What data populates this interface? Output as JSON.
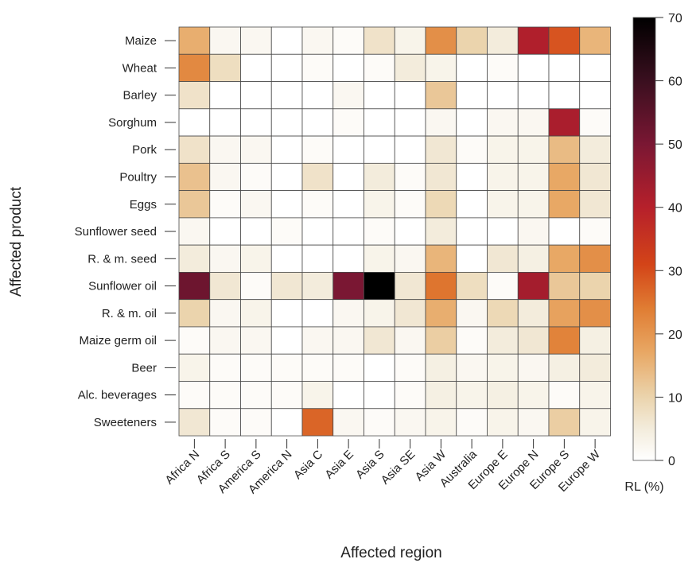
{
  "chart_data": {
    "type": "heatmap",
    "xlabel": "Affected region",
    "ylabel": "Affected product",
    "x_categories": [
      "Africa N",
      "Africa S",
      "America S",
      "America N",
      "Asia C",
      "Asia E",
      "Asia S",
      "Asia SE",
      "Asia W",
      "Australia",
      "Europe E",
      "Europe N",
      "Europe S",
      "Europe W"
    ],
    "y_categories": [
      "Maize",
      "Wheat",
      "Barley",
      "Sorghum",
      "Pork",
      "Poultry",
      "Eggs",
      "Sunflower seed",
      "R. & m. seed",
      "Sunflower oil",
      "R. & m. oil",
      "Maize germ oil",
      "Beer",
      "Alc. beverages",
      "Sweeteners"
    ],
    "values": [
      [
        16,
        2,
        2,
        0,
        2,
        1,
        7,
        3,
        21,
        10,
        5,
        41,
        29,
        15
      ],
      [
        22,
        8,
        0,
        0,
        1,
        0,
        1,
        5,
        3,
        0,
        1,
        0,
        0,
        0
      ],
      [
        7,
        0,
        0,
        0,
        0,
        2,
        0,
        0,
        12,
        0,
        0,
        0,
        0,
        0
      ],
      [
        0,
        0,
        0,
        0,
        0,
        1,
        0,
        0,
        2,
        0,
        2,
        2,
        42,
        1
      ],
      [
        7,
        2,
        2,
        0,
        1,
        0,
        0,
        0,
        6,
        1,
        3,
        3,
        14,
        5
      ],
      [
        13,
        2,
        1,
        0,
        7,
        0,
        5,
        1,
        6,
        0,
        3,
        3,
        17,
        6
      ],
      [
        12,
        1,
        2,
        0,
        1,
        0,
        3,
        1,
        9,
        0,
        3,
        3,
        17,
        6
      ],
      [
        2,
        0,
        0,
        1,
        0,
        0,
        1,
        0,
        5,
        0,
        0,
        2,
        0,
        1
      ],
      [
        5,
        2,
        3,
        0,
        0,
        0,
        3,
        2,
        15,
        0,
        6,
        4,
        17,
        21
      ],
      [
        52,
        6,
        1,
        6,
        5,
        50,
        70,
        6,
        25,
        8,
        1,
        43,
        12,
        10
      ],
      [
        10,
        2,
        3,
        0,
        0,
        2,
        3,
        6,
        16,
        2,
        9,
        5,
        18,
        21
      ],
      [
        1,
        2,
        2,
        0,
        2,
        2,
        6,
        2,
        11,
        1,
        5,
        6,
        23,
        4
      ],
      [
        3,
        1,
        1,
        1,
        1,
        1,
        0,
        1,
        4,
        2,
        3,
        2,
        4,
        5
      ],
      [
        1,
        1,
        1,
        1,
        3,
        0,
        0,
        1,
        4,
        3,
        4,
        3,
        1,
        3
      ],
      [
        6,
        1,
        1,
        0,
        27,
        2,
        1,
        2,
        3,
        1,
        3,
        2,
        11,
        3
      ]
    ],
    "colorbar": {
      "label": "RL (%)",
      "min": 0,
      "max": 70,
      "ticks": [
        0,
        10,
        20,
        30,
        40,
        50,
        60,
        70
      ],
      "stops": [
        {
          "value": 0,
          "color": "#ffffff"
        },
        {
          "value": 5,
          "color": "#f3ecdc"
        },
        {
          "value": 10,
          "color": "#ebd4ad"
        },
        {
          "value": 17,
          "color": "#e8a865"
        },
        {
          "value": 24,
          "color": "#e07d33"
        },
        {
          "value": 31,
          "color": "#d34418"
        },
        {
          "value": 40,
          "color": "#b6202b"
        },
        {
          "value": 50,
          "color": "#7a1733"
        },
        {
          "value": 60,
          "color": "#3a0f1f"
        },
        {
          "value": 70,
          "color": "#000000"
        }
      ]
    },
    "grid": true,
    "legend": "right"
  }
}
